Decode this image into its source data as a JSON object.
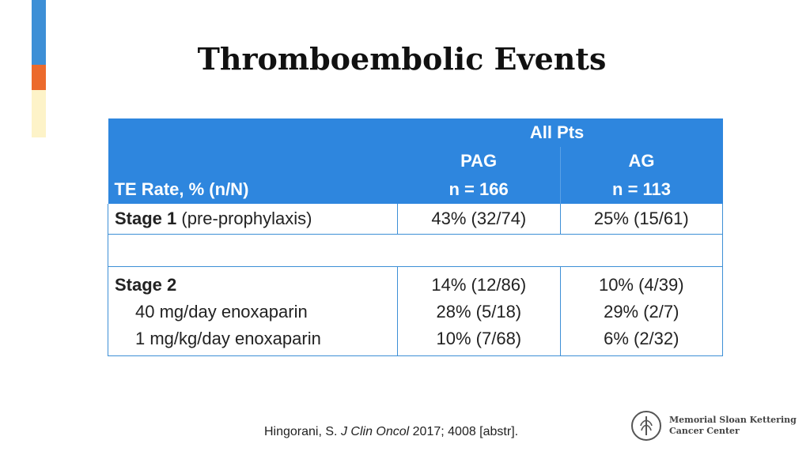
{
  "title": "Thromboembolic Events",
  "table": {
    "group_header": "All Pts",
    "row_header_label": "TE Rate, % (n/N)",
    "columns": [
      {
        "name": "PAG",
        "n": "n = 166"
      },
      {
        "name": "AG",
        "n": "n = 113"
      }
    ],
    "stage1": {
      "label_bold": "Stage 1",
      "label_rest": "(pre-prophylaxis)",
      "values": [
        "43% (32/74)",
        "25% (15/61)"
      ]
    },
    "stage2": {
      "label": "Stage 2",
      "values": [
        "14% (12/86)",
        "10% (4/39)"
      ],
      "sub_rows": [
        {
          "label": "40 mg/day enoxaparin",
          "values": [
            "28% (5/18)",
            "29% (2/7)"
          ]
        },
        {
          "label": "1 mg/kg/day enoxaparin",
          "values": [
            "10% (7/68)",
            "6% (2/32)"
          ]
        }
      ]
    }
  },
  "citation": {
    "authors": "Hingorani, S.",
    "journal": "J Clin Oncol",
    "details": "2017; 4008 [abstr]."
  },
  "logo": {
    "line1": "Memorial Sloan Kettering",
    "line2": "Cancer Center"
  },
  "colors": {
    "header_blue": "#2e86de",
    "accent_blue": "#3d8fd6",
    "accent_orange": "#ec6a2c",
    "accent_yellow": "#fdf3c8"
  }
}
